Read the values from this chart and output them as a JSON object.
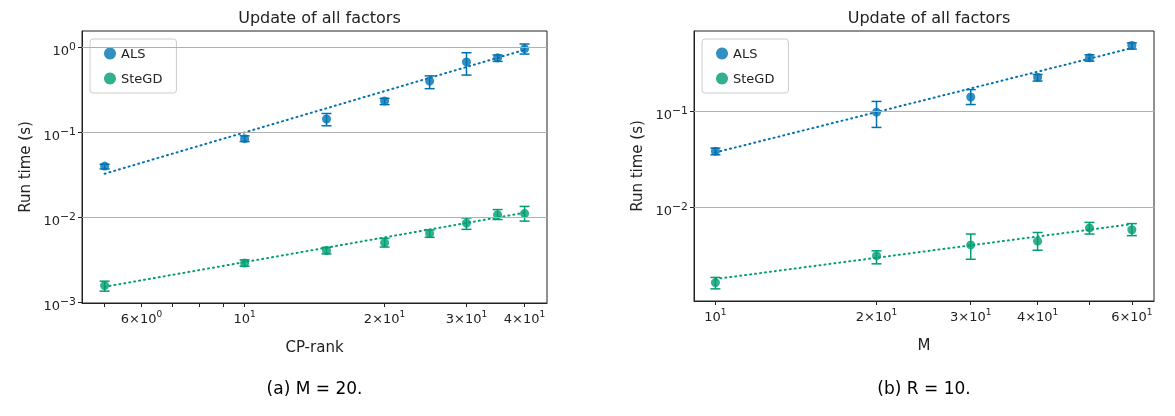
{
  "chart_data": [
    {
      "type": "scatter",
      "title": "Update of all factors",
      "xlabel": "CP-rank",
      "ylabel": "Run time (s)",
      "log": "xy",
      "grid": "y",
      "legend": "top left",
      "marker": "circle",
      "xlim": [
        4.47,
        44.7
      ],
      "ylim": [
        0.00098,
        1.55
      ],
      "xticks": [
        {
          "value": 5,
          "label": null
        },
        {
          "value": 6,
          "label": "6×10$^{0}$"
        },
        {
          "value": 7,
          "label": null
        },
        {
          "value": 8,
          "label": null
        },
        {
          "value": 9,
          "label": null
        },
        {
          "value": 10,
          "label": "10$^{1}$"
        },
        {
          "value": 20,
          "label": "2×10$^{1}$"
        },
        {
          "value": 30,
          "label": "3×10$^{1}$"
        },
        {
          "value": 40,
          "label": "4×10$^{1}$"
        }
      ],
      "yticks": [
        {
          "value": 0.001,
          "label": "10$^{−3}$"
        },
        {
          "value": 0.01,
          "label": "10$^{−2}$"
        },
        {
          "value": 0.1,
          "label": "10$^{−1}$"
        },
        {
          "value": 1,
          "label": "10$^{0}$"
        }
      ],
      "series": [
        {
          "name": "ALS",
          "color": "#0072b2",
          "x": [
            5,
            10,
            15,
            20,
            25,
            30,
            35,
            40
          ],
          "values": [
            0.04,
            0.084,
            0.143,
            0.233,
            0.4,
            0.67,
            0.75,
            0.96
          ],
          "errors": [
            [
              0.037,
              0.042
            ],
            [
              0.0776,
              0.0906
            ],
            [
              0.119,
              0.166
            ],
            [
              0.211,
              0.25
            ],
            [
              0.325,
              0.46
            ],
            [
              0.47,
              0.86
            ],
            [
              0.68,
              0.81
            ],
            [
              0.83,
              1.09
            ]
          ]
        },
        {
          "name": "SteGD",
          "color": "#009e73",
          "x": [
            5,
            10,
            15,
            20,
            25,
            30,
            35,
            40
          ],
          "values": [
            0.00157,
            0.00289,
            0.00406,
            0.00501,
            0.00645,
            0.00853,
            0.0107,
            0.0111
          ],
          "errors": [
            [
              0.00135,
              0.00177
            ],
            [
              0.00266,
              0.00315
            ],
            [
              0.00371,
              0.00442
            ],
            [
              0.00446,
              0.00565
            ],
            [
              0.0058,
              0.0071
            ],
            [
              0.0072,
              0.0098
            ],
            [
              0.0094,
              0.0123
            ],
            [
              0.009,
              0.0134
            ]
          ]
        },
        {
          "type": "line",
          "color": "#0072b2",
          "line_style": "dotted",
          "marker": "none",
          "x": [
            5,
            40
          ],
          "values": [
            0.0325,
            0.93
          ]
        },
        {
          "type": "line",
          "color": "#009e73",
          "line_style": "dotted",
          "marker": "none",
          "x": [
            5,
            40
          ],
          "values": [
            0.00152,
            0.0113
          ]
        }
      ],
      "annotations": [
        "(a) M = 20."
      ]
    },
    {
      "type": "scatter",
      "title": "Update of all factors",
      "xlabel": "M",
      "ylabel": "Run time (s)",
      "log": "xy",
      "grid": "y",
      "legend": "top left",
      "marker": "circle",
      "xlim": [
        9.12,
        66
      ],
      "ylim": [
        0.00107,
        0.678
      ],
      "xticks": [
        {
          "value": 10,
          "label": "10$^{1}$"
        },
        {
          "value": 20,
          "label": "2×10$^{1}$"
        },
        {
          "value": 30,
          "label": "3×10$^{1}$"
        },
        {
          "value": 40,
          "label": "4×10$^{1}$"
        },
        {
          "value": 50,
          "label": null
        },
        {
          "value": 60,
          "label": "6×10$^{1}$"
        }
      ],
      "yticks": [
        {
          "value": 0.01,
          "label": "10$^{−2}$"
        },
        {
          "value": 0.1,
          "label": "10$^{−1}$"
        }
      ],
      "series": [
        {
          "name": "ALS",
          "color": "#0072b2",
          "x": [
            10,
            20,
            30,
            40,
            50,
            60
          ],
          "values": [
            0.0384,
            0.0974,
            0.14,
            0.224,
            0.358,
            0.48
          ],
          "errors": [
            [
              0.0352,
              0.0413
            ],
            [
              0.0677,
              0.126
            ],
            [
              0.117,
              0.167
            ],
            [
              0.205,
              0.24
            ],
            [
              0.33,
              0.384
            ],
            [
              0.44,
              0.51
            ]
          ]
        },
        {
          "name": "SteGD",
          "color": "#009e73",
          "x": [
            10,
            20,
            30,
            40,
            50,
            60
          ],
          "values": [
            0.00166,
            0.00316,
            0.00409,
            0.00447,
            0.00614,
            0.00587
          ],
          "errors": [
            [
              0.00143,
              0.00188
            ],
            [
              0.0026,
              0.00355
            ],
            [
              0.0029,
              0.0053
            ],
            [
              0.0036,
              0.0055
            ],
            [
              0.0053,
              0.007
            ],
            [
              0.0051,
              0.0068
            ]
          ]
        },
        {
          "type": "line",
          "color": "#0072b2",
          "line_style": "dotted",
          "marker": "none",
          "x": [
            10,
            60
          ],
          "values": [
            0.0372,
            0.451
          ]
        },
        {
          "type": "line",
          "color": "#009e73",
          "line_style": "dotted",
          "marker": "none",
          "x": [
            10,
            60
          ],
          "values": [
            0.00181,
            0.00672
          ]
        }
      ],
      "annotations": [
        "(b) R = 10."
      ]
    }
  ]
}
